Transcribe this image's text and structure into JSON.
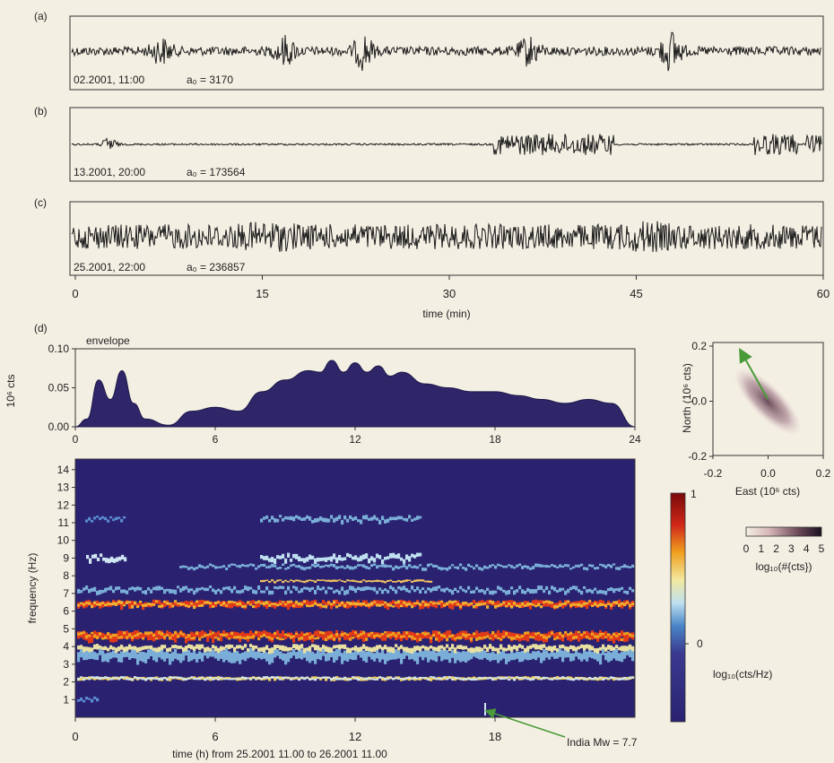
{
  "panel_labels": {
    "a": "(a)",
    "b": "(b)",
    "c": "(c)",
    "d": "(d)"
  },
  "traces": [
    {
      "id": "a",
      "label_date": "02.2001, 11:00",
      "label_a0": "a₀ = 3170"
    },
    {
      "id": "b",
      "label_date": "13.2001, 20:00",
      "label_a0": "a₀ = 173564"
    },
    {
      "id": "c",
      "label_date": "25.2001, 22:00",
      "label_a0": "a₀ = 236857"
    }
  ],
  "time_axis": {
    "ticks": [
      "0",
      "15",
      "30",
      "45",
      "60"
    ],
    "label": "time (min)"
  },
  "envelope": {
    "label": "envelope",
    "ylabel": "10⁶ cts",
    "yticks": [
      "0.10",
      "0.05",
      "0.00"
    ],
    "xticks": [
      "0",
      "6",
      "12",
      "18",
      "24"
    ]
  },
  "spectrogram": {
    "ylabel": "frequency (Hz)",
    "yticks": [
      "1",
      "2",
      "3",
      "4",
      "5",
      "6",
      "7",
      "8",
      "9",
      "10",
      "11",
      "12",
      "13",
      "14"
    ],
    "xticks": [
      "0",
      "6",
      "12",
      "18"
    ],
    "xlabel": "time (h) from 25.2001 11.00 to 26.2001 11.00",
    "annotation": "India Mw = 7.7"
  },
  "colorbar": {
    "top": "1",
    "mid": "0",
    "label": "log₁₀(cts/Hz)"
  },
  "scatter": {
    "xlabel": "East (10⁶ cts)",
    "ylabel": "North (10⁶ cts)",
    "xticks": [
      "-0.2",
      "0.0",
      "0.2"
    ],
    "yticks": [
      "0.2",
      "0.0",
      "-0.2"
    ],
    "density_ticks": [
      "0",
      "1",
      "2",
      "3",
      "4",
      "5"
    ],
    "density_label": "log₁₀(#{cts})"
  },
  "chart_data": {
    "type": "area",
    "x": [
      0,
      0.5,
      1,
      1.5,
      2,
      2.5,
      3,
      4,
      5,
      6,
      7,
      8,
      9,
      10,
      10.5,
      11,
      11.5,
      12,
      12.5,
      13,
      13.5,
      14,
      15,
      16,
      17,
      18,
      19,
      20,
      21,
      22,
      23,
      24
    ],
    "values": [
      0.0,
      0.01,
      0.06,
      0.035,
      0.072,
      0.03,
      0.01,
      0.002,
      0.02,
      0.025,
      0.02,
      0.045,
      0.06,
      0.072,
      0.07,
      0.085,
      0.07,
      0.082,
      0.07,
      0.078,
      0.065,
      0.07,
      0.055,
      0.05,
      0.045,
      0.045,
      0.04,
      0.035,
      0.03,
      0.035,
      0.03,
      0.0
    ],
    "xlim": [
      0,
      24
    ],
    "ylim": [
      0,
      0.1
    ],
    "xlabel": "",
    "ylabel": "10⁶ cts"
  },
  "colors": {
    "envelope_fill": "#2e2668",
    "spectrogram_bg": "#2a2270",
    "arrow": "#4a9a3a"
  }
}
